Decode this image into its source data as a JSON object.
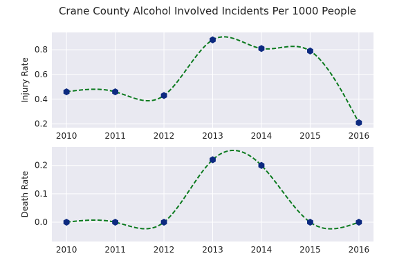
{
  "chart_data": {
    "title": "Crane County Alcohol Involved Incidents Per 1000 People",
    "subplots": [
      {
        "type": "line",
        "ylabel": "Injury Rate",
        "x": [
          2010,
          2011,
          2012,
          2013,
          2014,
          2015,
          2016
        ],
        "values": [
          0.46,
          0.46,
          0.43,
          0.88,
          0.81,
          0.79,
          0.21
        ],
        "ylim": [
          0.17,
          0.94
        ],
        "yticks": [
          0.2,
          0.4,
          0.6,
          0.8
        ],
        "ytick_labels": [
          "0.2",
          "0.4",
          "0.6",
          "0.8"
        ],
        "xlim": [
          2009.7,
          2016.3
        ],
        "line_color": "#0b7a1e",
        "line_style": "dashed",
        "marker_color": "#0d2a80",
        "marker": "hexagon",
        "grid": true
      },
      {
        "type": "line",
        "ylabel": "Death Rate",
        "x": [
          2010,
          2011,
          2012,
          2013,
          2014,
          2015,
          2016
        ],
        "values": [
          0.0,
          0.0,
          0.0,
          0.22,
          0.2,
          0.0,
          0.0
        ],
        "ylim": [
          -0.068,
          0.265
        ],
        "yticks": [
          0.0,
          0.1,
          0.2
        ],
        "ytick_labels": [
          "0.0",
          "0.1",
          "0.2"
        ],
        "xlim": [
          2009.7,
          2016.3
        ],
        "line_color": "#0b7a1e",
        "line_style": "dashed",
        "marker_color": "#0d2a80",
        "marker": "hexagon",
        "grid": true
      }
    ],
    "xtick_labels": [
      "2010",
      "2011",
      "2012",
      "2013",
      "2014",
      "2015",
      "2016"
    ]
  }
}
